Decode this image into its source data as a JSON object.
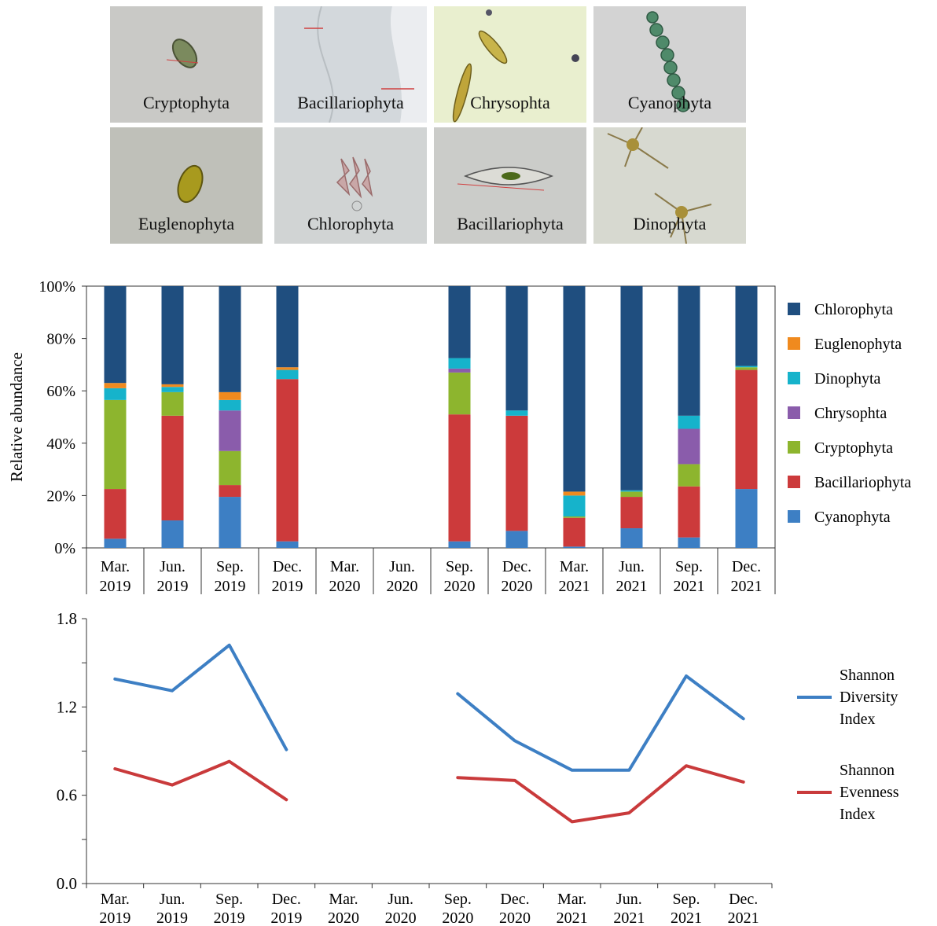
{
  "photos": {
    "row1": [
      {
        "label": "Cryptophyta",
        "bg": "#c9c9c6",
        "organism": "oval-cell"
      },
      {
        "label": "Bacillariophyta",
        "bg": "#d3d8dc",
        "organism": "membrane"
      },
      {
        "label": "Chrysophta",
        "bg": "#e9efcf",
        "organism": "elongated-cells"
      },
      {
        "label": "Cyanophyta",
        "bg": "#d3d3d3",
        "organism": "filament-chain"
      }
    ],
    "row2": [
      {
        "label": "Euglenophyta",
        "bg": "#bfc0b9",
        "organism": "teardrop-cell"
      },
      {
        "label": "Chlorophyta",
        "bg": "#d1d4d4",
        "organism": "colony"
      },
      {
        "label": "Bacillariophyta",
        "bg": "#cbccc9",
        "organism": "spindle-cell"
      },
      {
        "label": "Dinophyta",
        "bg": "#d7d9d0",
        "organism": "horned-cells"
      }
    ]
  },
  "chart_data": [
    {
      "type": "bar",
      "stacked": true,
      "ylabel": "Relative abundance",
      "ytick_labels": [
        "0%",
        "20%",
        "40%",
        "60%",
        "80%",
        "100%"
      ],
      "ylim": [
        0,
        100
      ],
      "categories": [
        {
          "month": "Mar.",
          "year": "2019"
        },
        {
          "month": "Jun.",
          "year": "2019"
        },
        {
          "month": "Sep.",
          "year": "2019"
        },
        {
          "month": "Dec.",
          "year": "2019"
        },
        {
          "month": "Mar.",
          "year": "2020"
        },
        {
          "month": "Jun.",
          "year": "2020"
        },
        {
          "month": "Sep.",
          "year": "2020"
        },
        {
          "month": "Dec.",
          "year": "2020"
        },
        {
          "month": "Mar.",
          "year": "2021"
        },
        {
          "month": "Jun.",
          "year": "2021"
        },
        {
          "month": "Sep.",
          "year": "2021"
        },
        {
          "month": "Dec.",
          "year": "2021"
        }
      ],
      "legend_position": "right",
      "series": [
        {
          "name": "Cyanophyta",
          "color": "#3d7fc4",
          "values": [
            3.5,
            10.5,
            19.5,
            2.5,
            null,
            null,
            2.5,
            6.5,
            0.5,
            7.5,
            4,
            22.5
          ]
        },
        {
          "name": "Bacillariophyta",
          "color": "#cc3a3b",
          "values": [
            19,
            40,
            4.5,
            62,
            null,
            null,
            48.5,
            44,
            11,
            12,
            19.5,
            45.5
          ]
        },
        {
          "name": "Cryptophyta",
          "color": "#8db52e",
          "values": [
            34,
            9,
            13,
            0,
            null,
            null,
            16,
            0,
            0.5,
            2,
            8.5,
            1
          ]
        },
        {
          "name": "Chrysophta",
          "color": "#8a5cab",
          "values": [
            0,
            0,
            15.5,
            0,
            null,
            null,
            1.5,
            0,
            0,
            0,
            13.5,
            0
          ]
        },
        {
          "name": "Dinophyta",
          "color": "#16b3cb",
          "values": [
            4.5,
            2,
            4,
            3.5,
            null,
            null,
            4,
            2,
            8,
            0.5,
            5,
            0.5
          ]
        },
        {
          "name": "Euglenophyta",
          "color": "#f08a1e",
          "values": [
            2,
            1,
            3,
            1,
            null,
            null,
            0,
            0,
            1.5,
            0,
            0,
            0
          ]
        },
        {
          "name": "Chlorophyta",
          "color": "#1f4e7f",
          "values": [
            37,
            37.5,
            40.5,
            31,
            null,
            null,
            27.5,
            47.5,
            78.5,
            78,
            49.5,
            30.5
          ]
        }
      ]
    },
    {
      "type": "line",
      "ytick_labels": [
        "0.0",
        "0.6",
        "1.2",
        "1.8"
      ],
      "ylim": [
        0,
        1.8
      ],
      "categories": [
        {
          "month": "Mar.",
          "year": "2019"
        },
        {
          "month": "Jun.",
          "year": "2019"
        },
        {
          "month": "Sep.",
          "year": "2019"
        },
        {
          "month": "Dec.",
          "year": "2019"
        },
        {
          "month": "Mar.",
          "year": "2020"
        },
        {
          "month": "Jun.",
          "year": "2020"
        },
        {
          "month": "Sep.",
          "year": "2020"
        },
        {
          "month": "Dec.",
          "year": "2020"
        },
        {
          "month": "Mar.",
          "year": "2021"
        },
        {
          "month": "Jun.",
          "year": "2021"
        },
        {
          "month": "Sep.",
          "year": "2021"
        },
        {
          "month": "Dec.",
          "year": "2021"
        }
      ],
      "legend_position": "right",
      "series": [
        {
          "name": "Shannon Diversity Index",
          "name_lines": [
            "Shannon",
            "Diversity",
            "Index"
          ],
          "color": "#3d7fc4",
          "values": [
            1.39,
            1.31,
            1.62,
            0.91,
            null,
            null,
            1.29,
            0.97,
            0.77,
            0.77,
            1.41,
            1.12
          ]
        },
        {
          "name": "Shannon Evenness Index",
          "name_lines": [
            "Shannon",
            "Evenness",
            "Index"
          ],
          "color": "#c93a3b",
          "values": [
            0.78,
            0.67,
            0.83,
            0.57,
            null,
            null,
            0.72,
            0.7,
            0.42,
            0.48,
            0.8,
            0.69
          ]
        }
      ]
    }
  ]
}
